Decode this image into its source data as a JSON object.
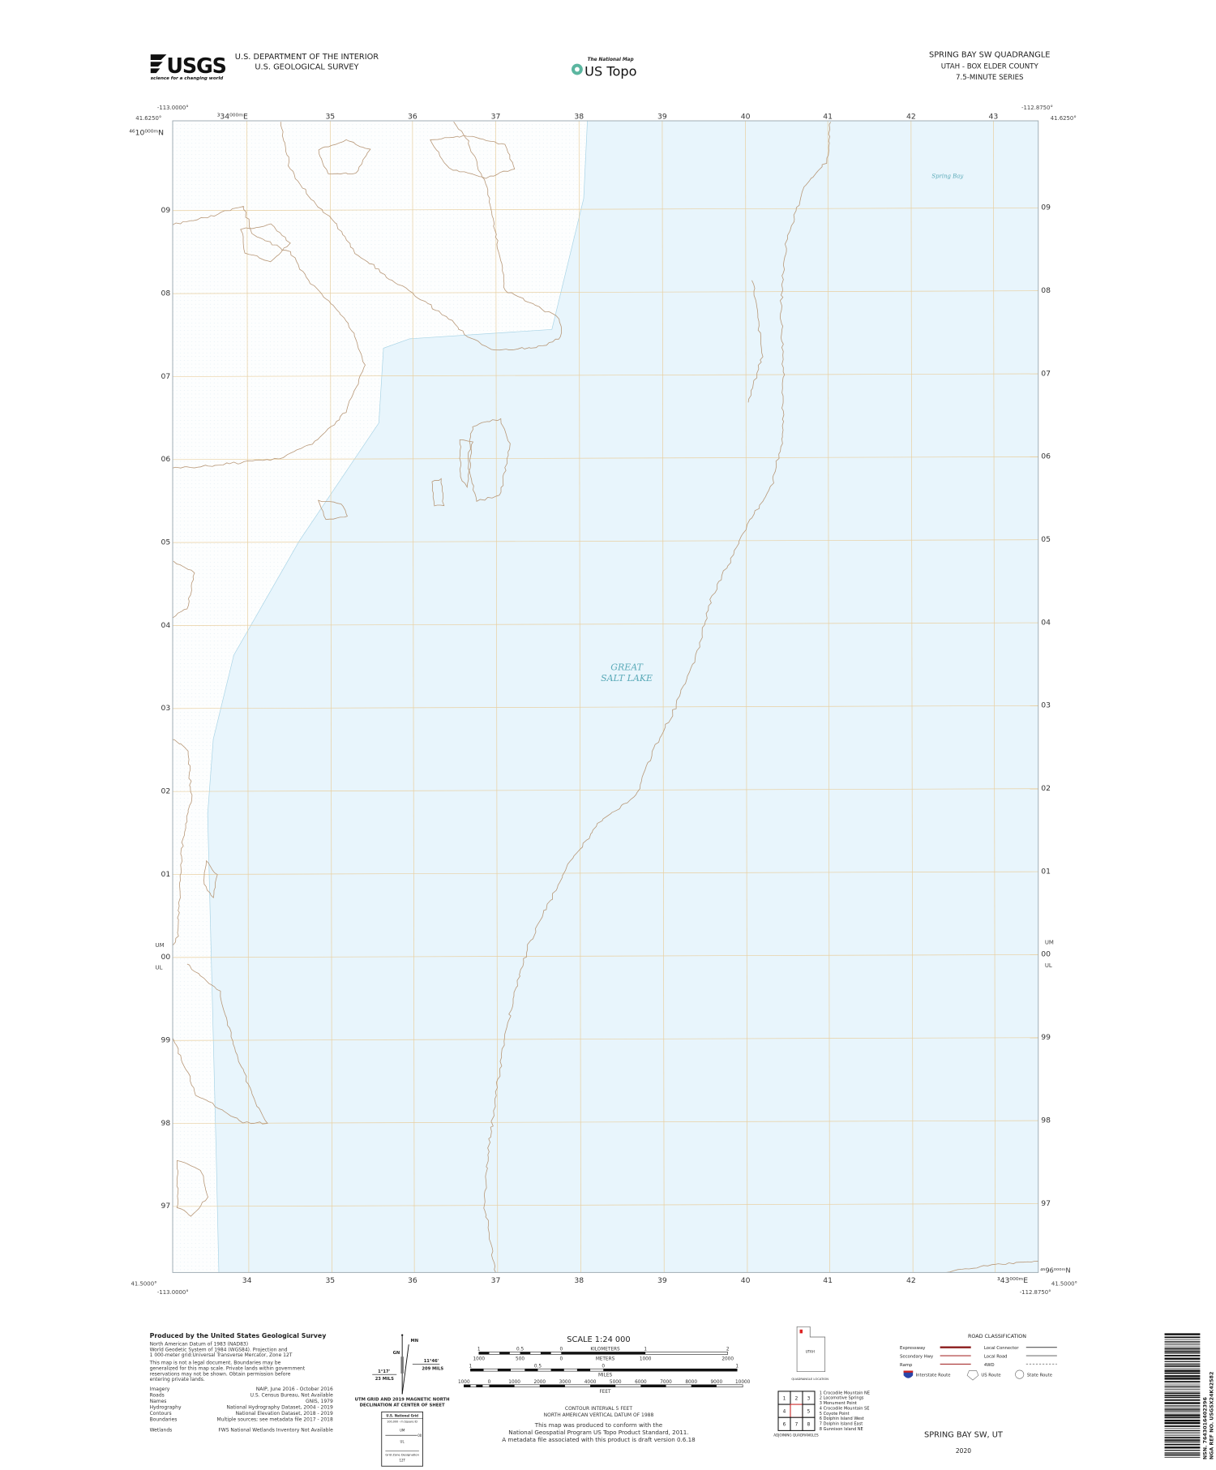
{
  "header": {
    "agency_logo": "USGS",
    "agency_tagline": "science for a changing world",
    "department": "U.S. DEPARTMENT OF THE INTERIOR",
    "survey": "U.S. GEOLOGICAL SURVEY",
    "national_map": "The National Map",
    "us_topo": "US Topo",
    "quad_title": "SPRING BAY SW QUADRANGLE",
    "state_county": "UTAH - BOX ELDER COUNTY",
    "series": "7.5-MINUTE SERIES"
  },
  "map": {
    "corners": {
      "top_left_lon": "-113.0000°",
      "top_left_lat": "41.6250°",
      "top_right_lon": "-112.8750°",
      "top_right_lat": "41.6250°",
      "bottom_left_lat": "41.5000°",
      "bottom_left_lon": "-113.0000°",
      "bottom_right_lon": "-112.8750°",
      "bottom_right_lat": "41.5000°"
    },
    "utm_top_left_easting": "³34⁰⁰⁰ᵐE",
    "utm_top_left_northing": "⁴⁶10⁰⁰⁰ᵐN",
    "utm_bottom_right_easting": "³43⁰⁰⁰ᵐE",
    "utm_bottom_right_northing": "⁴⁵96⁰⁰⁰ᵐN",
    "top_eastings": [
      "35",
      "36",
      "37",
      "38",
      "39",
      "40",
      "41",
      "42",
      "43"
    ],
    "bottom_eastings": [
      "34",
      "35",
      "36",
      "37",
      "38",
      "39",
      "40",
      "41",
      "42"
    ],
    "northings": [
      "09",
      "08",
      "07",
      "06",
      "05",
      "04",
      "03",
      "02",
      "01",
      "00",
      "99",
      "98",
      "97"
    ],
    "grid_zone_um": "UM",
    "grid_zone_ul": "UL",
    "labels": {
      "lake": [
        "GREAT",
        "SALT LAKE"
      ],
      "bay": "Spring Bay"
    },
    "colors": {
      "water": "#e8f5fc",
      "contour": "#b89878",
      "grid": "#e8cfa0",
      "neatline": "#9aa8b0"
    }
  },
  "credits": {
    "title": "Produced by the United States Geological Survey",
    "datum_lines": [
      "North American Datum of 1983 (NAD83)",
      "World Geodetic System of 1984 (WGS84).  Projection and",
      "1 000-meter grid:Universal Transverse Mercator, Zone 12T"
    ],
    "disclaimer_lines": [
      "This map is not a legal document. Boundaries may be",
      "generalized for this map scale. Private lands within government",
      "reservations may not be shown. Obtain permission before",
      "entering private lands."
    ],
    "sources": [
      {
        "label": "Imagery",
        "value": "NAIP, June 2016 - October 2016"
      },
      {
        "label": "Roads",
        "value": "U.S. Census Bureau, Not Available"
      },
      {
        "label": "Names",
        "value": "GNIS, 1979"
      },
      {
        "label": "Hydrography",
        "value": "National Hydrography Dataset, 2004 - 2019"
      },
      {
        "label": "Contours",
        "value": "National Elevation Dataset, 2018 - 2019"
      },
      {
        "label": "Boundaries",
        "value": "Multiple sources; see metadata file 2017 - 2018"
      },
      {
        "label": "Wetlands",
        "value": "FWS National Wetlands Inventory Not Available"
      }
    ]
  },
  "declination": {
    "mn": "MN",
    "gn": "GN",
    "east_angle": "11°46'",
    "east_mils": "209 MILS",
    "west_angle": "1°17'",
    "west_mils": "23 MILS",
    "caption": [
      "UTM GRID AND 2019 MAGNETIC NORTH",
      "DECLINATION AT CENTER OF SHEET"
    ]
  },
  "usng": {
    "title": "U.S. National Grid",
    "subtitle": "100,000 - m Square ID",
    "um": "UM",
    "ul": "UL",
    "line_value": "00",
    "gzd_label": "Grid Zone Designation",
    "gzd": "12T"
  },
  "scale": {
    "title": "SCALE 1:24 000",
    "km_ticks": [
      "1",
      "0.5",
      "0",
      "1",
      "2"
    ],
    "km_unit": "KILOMETERS",
    "m_ticks": [
      "1000",
      "500",
      "0",
      "1000",
      "2000"
    ],
    "m_unit": "METERS",
    "mi_ticks": [
      "1",
      "0.5",
      "0",
      "1"
    ],
    "mi_unit": "MILES",
    "ft_ticks": [
      "1000",
      "0",
      "1000",
      "2000",
      "3000",
      "4000",
      "5000",
      "6000",
      "7000",
      "8000",
      "9000",
      "10000"
    ],
    "ft_unit": "FEET",
    "contour_interval": "CONTOUR INTERVAL 5 FEET",
    "vertical_datum": "NORTH AMERICAN VERTICAL DATUM OF 1988",
    "standard_lines": [
      "This map was produced to conform with the",
      "National Geospatial Program US Topo Product Standard, 2011.",
      "A metadata file associated with this product is draft version 0.6.18"
    ]
  },
  "location": {
    "state": "UTAH",
    "caption": "QUADRANGLE LOCATION"
  },
  "adjoining": {
    "cells": [
      "1",
      "2",
      "3",
      "4",
      "",
      "5",
      "6",
      "7",
      "8"
    ],
    "names": [
      "1 Crocodile Mountain NE",
      "2 Locomotive Springs",
      "3 Monument Point",
      "4 Crocodile Mountain SE",
      "5 Coyote Point",
      "6 Dolphin Island West",
      "7 Dolphin Island East",
      "8 Gunnison Island NE"
    ],
    "caption": "ADJOINING QUADRANGLES"
  },
  "roads": {
    "title": "ROAD CLASSIFICATION",
    "left": [
      {
        "label": "Expressway",
        "color": "#8b1c1c"
      },
      {
        "label": "Secondary Hwy",
        "color": "#a33"
      },
      {
        "label": "Ramp",
        "color": "#a33"
      }
    ],
    "right": [
      {
        "label": "Local Connector",
        "color": "#555"
      },
      {
        "label": "Local Road",
        "color": "#777"
      },
      {
        "label": "4WD",
        "color": "#999"
      }
    ],
    "routes": [
      "Interstate Route",
      "US Route",
      "State Route"
    ]
  },
  "footer": {
    "title": "SPRING BAY SW,  UT",
    "year": "2020"
  },
  "barcode": {
    "nsn": "NSN.  7643016402396",
    "nga": "NGA REF NO. USGSX24K42582"
  }
}
